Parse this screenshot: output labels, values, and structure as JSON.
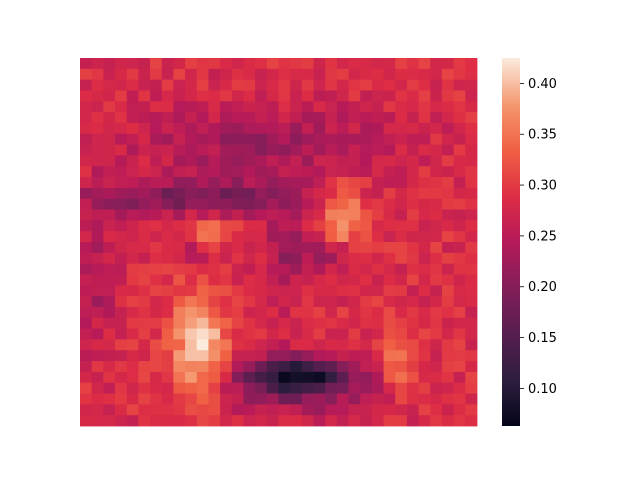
{
  "chart_data": {
    "type": "heatmap",
    "title": "",
    "xlabel": "",
    "ylabel": "",
    "colormap": "rocket",
    "grid": false,
    "colorbar": {
      "location": "right",
      "range": [
        0.063,
        0.425
      ],
      "ticks": [
        0.1,
        0.15,
        0.2,
        0.25,
        0.3,
        0.35,
        0.4
      ],
      "tick_labels": [
        "0.10",
        "0.15",
        "0.20",
        "0.25",
        "0.30",
        "0.35",
        "0.40"
      ]
    },
    "colormap_stops": [
      {
        "value": 0.0,
        "color": "#03051a"
      },
      {
        "value": 0.12,
        "color": "#2c1e3e"
      },
      {
        "value": 0.25,
        "color": "#571e4f"
      },
      {
        "value": 0.38,
        "color": "#841e5a"
      },
      {
        "value": 0.5,
        "color": "#b51a59"
      },
      {
        "value": 0.62,
        "color": "#dd2c45"
      },
      {
        "value": 0.75,
        "color": "#f06043"
      },
      {
        "value": 0.87,
        "color": "#f4966e"
      },
      {
        "value": 1.0,
        "color": "#faebdd"
      }
    ],
    "grid_size": [
      34,
      34
    ],
    "base_value": 0.285,
    "features": [
      {
        "name": "hair-band",
        "cx": 0.45,
        "cy": 0.23,
        "rx": 0.33,
        "ry": 0.1,
        "delta": -0.06
      },
      {
        "name": "brow-band",
        "cx": 0.28,
        "cy": 0.38,
        "rx": 0.28,
        "ry": 0.05,
        "delta": -0.095
      },
      {
        "name": "left-eye-dark",
        "cx": 0.29,
        "cy": 0.51,
        "rx": 0.07,
        "ry": 0.05,
        "delta": -0.06
      },
      {
        "name": "right-eye-dark",
        "cx": 0.64,
        "cy": 0.53,
        "rx": 0.06,
        "ry": 0.05,
        "delta": -0.08
      },
      {
        "name": "nose-bridge",
        "cx": 0.52,
        "cy": 0.52,
        "rx": 0.06,
        "ry": 0.15,
        "delta": -0.06
      },
      {
        "name": "left-cheek-light",
        "cx": 0.32,
        "cy": 0.48,
        "rx": 0.06,
        "ry": 0.04,
        "delta": 0.1
      },
      {
        "name": "right-cheek-light",
        "cx": 0.66,
        "cy": 0.44,
        "rx": 0.05,
        "ry": 0.1,
        "delta": 0.11
      },
      {
        "name": "left-lower-light",
        "cx": 0.3,
        "cy": 0.78,
        "rx": 0.07,
        "ry": 0.14,
        "delta": 0.13
      },
      {
        "name": "right-lower-light",
        "cx": 0.8,
        "cy": 0.82,
        "rx": 0.04,
        "ry": 0.08,
        "delta": 0.07
      },
      {
        "name": "mouth-dark",
        "cx": 0.55,
        "cy": 0.86,
        "rx": 0.14,
        "ry": 0.05,
        "delta": -0.2
      },
      {
        "name": "chin-shadow",
        "cx": 0.55,
        "cy": 0.92,
        "rx": 0.18,
        "ry": 0.06,
        "delta": -0.06
      },
      {
        "name": "left-edge-shade",
        "cx": 0.04,
        "cy": 0.58,
        "rx": 0.05,
        "ry": 0.2,
        "delta": -0.05
      }
    ]
  }
}
